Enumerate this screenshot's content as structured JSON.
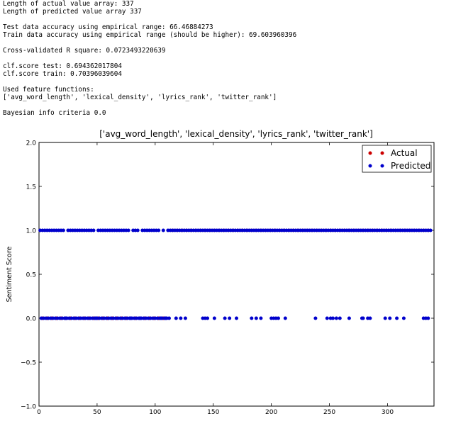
{
  "console": {
    "lines": [
      "Length of actual value array: 337",
      "Length of predicted value array 337",
      "",
      "Test data accuracy using empirical range: 66.46884273",
      "Train data accuracy using empirical range (should be higher): 69.603960396",
      "",
      "Cross-validated R square: 0.0723493220639",
      "",
      "clf.score test: 0.694362017804",
      "clf.score train: 0.70396039604",
      "",
      "Used feature functions:",
      "['avg_word_length', 'lexical_density', 'lyrics_rank', 'twitter_rank']",
      "",
      "Bayesian info criteria 0.0"
    ]
  },
  "chart_data": {
    "type": "scatter",
    "title": "['avg_word_length', 'lexical_density', 'lyrics_rank', 'twitter_rank']",
    "xlabel": "",
    "ylabel": "Sentiment Score",
    "xlim": [
      0,
      340
    ],
    "ylim": [
      -1.0,
      2.0
    ],
    "xticks": [
      0,
      50,
      100,
      150,
      200,
      250,
      300
    ],
    "yticks": [
      -1.0,
      -0.5,
      0.0,
      0.5,
      1.0,
      1.5,
      2.0
    ],
    "ytick_labels": [
      "−1.0",
      "−0.5",
      "0.0",
      "0.5",
      "1.0",
      "1.5",
      "2.0"
    ],
    "legend_position": "top-right",
    "series": [
      {
        "name": "Actual",
        "color": "#cc0000",
        "points_at_1": [
          115,
          119,
          123,
          127,
          131,
          135,
          139,
          143,
          147,
          151,
          155,
          159,
          163,
          167,
          171,
          175,
          179,
          183,
          187,
          191,
          195,
          199,
          203,
          207,
          211,
          215,
          219,
          223,
          227,
          231,
          235,
          239,
          243,
          247,
          251,
          255,
          259,
          263,
          267,
          271,
          275,
          279,
          283,
          287,
          291,
          295,
          299,
          303,
          307,
          311,
          315,
          319,
          323,
          327,
          331,
          335
        ],
        "points_at_0": [
          3,
          7,
          11,
          15,
          19,
          23,
          27,
          31,
          35,
          39,
          43,
          47,
          51,
          55,
          59,
          63,
          67,
          71,
          75,
          79,
          83,
          87,
          91,
          95,
          99,
          103,
          107
        ]
      },
      {
        "name": "Predicted",
        "color": "#0000cc",
        "points_at_1": [
          1,
          3,
          5,
          7,
          9,
          11,
          13,
          15,
          17,
          19,
          21,
          25,
          27,
          29,
          31,
          33,
          35,
          37,
          39,
          41,
          43,
          45,
          47,
          51,
          53,
          55,
          57,
          59,
          61,
          63,
          65,
          67,
          69,
          71,
          73,
          75,
          77,
          81,
          83,
          85,
          89,
          91,
          93,
          95,
          97,
          99,
          101,
          103,
          107,
          111,
          113,
          115,
          117,
          119,
          121,
          123,
          125,
          127,
          129,
          131,
          133,
          135,
          137,
          139,
          141,
          143,
          145,
          147,
          149,
          151,
          153,
          155,
          157,
          159,
          161,
          163,
          165,
          167,
          169,
          171,
          173,
          175,
          177,
          179,
          181,
          183,
          185,
          187,
          189,
          191,
          193,
          195,
          197,
          199,
          201,
          203,
          205,
          207,
          209,
          211,
          213,
          215,
          217,
          219,
          221,
          223,
          225,
          227,
          229,
          231,
          233,
          235,
          237,
          239,
          241,
          243,
          245,
          247,
          249,
          251,
          253,
          255,
          257,
          259,
          261,
          263,
          265,
          267,
          269,
          271,
          273,
          275,
          277,
          279,
          281,
          283,
          285,
          287,
          289,
          291,
          293,
          295,
          297,
          299,
          301,
          303,
          305,
          307,
          309,
          311,
          313,
          315,
          317,
          319,
          321,
          323,
          325,
          327,
          329,
          331,
          333,
          335,
          337
        ],
        "points_at_0": [
          2,
          4,
          6,
          8,
          10,
          12,
          14,
          16,
          18,
          20,
          22,
          23,
          24,
          26,
          28,
          30,
          32,
          34,
          36,
          38,
          40,
          42,
          44,
          46,
          48,
          49,
          50,
          52,
          54,
          56,
          58,
          60,
          62,
          64,
          66,
          68,
          70,
          72,
          74,
          76,
          78,
          79,
          80,
          82,
          84,
          86,
          87,
          88,
          90,
          92,
          94,
          96,
          98,
          100,
          102,
          104,
          105,
          106,
          108,
          109,
          110,
          112,
          118,
          122,
          126,
          141,
          143,
          145,
          151,
          160,
          164,
          170,
          183,
          187,
          191,
          200,
          202,
          204,
          206,
          212,
          238,
          248,
          251,
          253,
          256,
          259,
          267,
          278,
          279,
          283,
          285,
          298,
          302,
          308,
          314,
          331,
          333,
          335
        ]
      }
    ]
  }
}
